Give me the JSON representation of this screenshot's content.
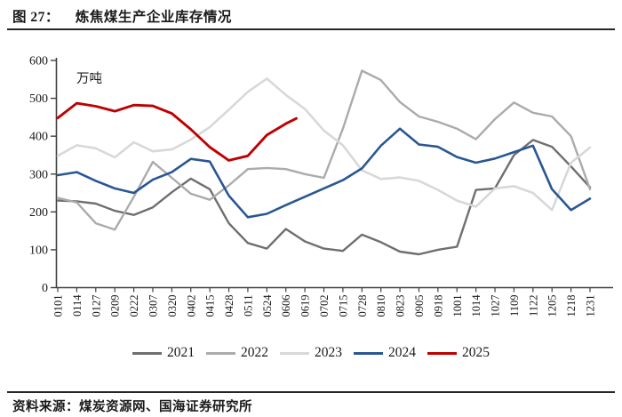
{
  "figure": {
    "title_prefix": "图 27：",
    "title": "炼焦煤生产企业库存情况",
    "source": "资料来源：煤炭资源网、国海证券研究所"
  },
  "chart_data": {
    "type": "line",
    "title": "炼焦煤生产企业库存情况",
    "unit_label": "万吨",
    "ylabel": "万吨",
    "ylim": [
      0,
      600
    ],
    "ytick_step": 100,
    "grid": false,
    "legend_position": "bottom",
    "categories": [
      "0101",
      "0114",
      "0127",
      "0209",
      "0222",
      "0307",
      "0320",
      "0402",
      "0415",
      "0428",
      "0511",
      "0524",
      "0606",
      "0619",
      "0702",
      "0715",
      "0728",
      "0810",
      "0823",
      "0905",
      "0918",
      "1001",
      "1014",
      "1027",
      "1109",
      "1122",
      "1205",
      "1218",
      "1231"
    ],
    "series": [
      {
        "name": "2021",
        "color": "#6f6f6f",
        "width": 2.4,
        "values": [
          230,
          228,
          222,
          203,
          192,
          212,
          252,
          288,
          260,
          170,
          118,
          103,
          155,
          122,
          103,
          97,
          140,
          120,
          95,
          88,
          100,
          108,
          258,
          262,
          350,
          390,
          372,
          320,
          265
        ]
      },
      {
        "name": "2022",
        "color": "#ababab",
        "width": 2.4,
        "values": [
          237,
          225,
          170,
          153,
          240,
          332,
          290,
          248,
          232,
          270,
          313,
          316,
          313,
          300,
          290,
          420,
          573,
          548,
          490,
          452,
          438,
          420,
          392,
          445,
          489,
          462,
          452,
          400,
          260
        ]
      },
      {
        "name": "2023",
        "color": "#d8d8d8",
        "width": 2.6,
        "values": [
          348,
          376,
          368,
          344,
          384,
          360,
          365,
          391,
          424,
          470,
          517,
          552,
          509,
          472,
          415,
          376,
          310,
          287,
          291,
          282,
          258,
          230,
          214,
          262,
          268,
          250,
          205,
          330,
          370
        ]
      },
      {
        "name": "2024",
        "color": "#2a5793",
        "width": 2.6,
        "values": [
          297,
          305,
          282,
          262,
          250,
          285,
          305,
          340,
          333,
          243,
          186,
          195,
          218,
          240,
          262,
          284,
          315,
          375,
          420,
          378,
          372,
          345,
          330,
          341,
          358,
          375,
          260,
          205,
          235
        ]
      },
      {
        "name": "2025",
        "color": "#c00000",
        "width": 2.9,
        "values": [
          448,
          487,
          479,
          466,
          482,
          480,
          460,
          418,
          371,
          336,
          348,
          403,
          433,
          null,
          null,
          null,
          null,
          null,
          null,
          null,
          null,
          null,
          null,
          null,
          null,
          null,
          null,
          null,
          null
        ],
        "extra_points": [
          [
            12.55,
            447
          ]
        ]
      }
    ]
  }
}
